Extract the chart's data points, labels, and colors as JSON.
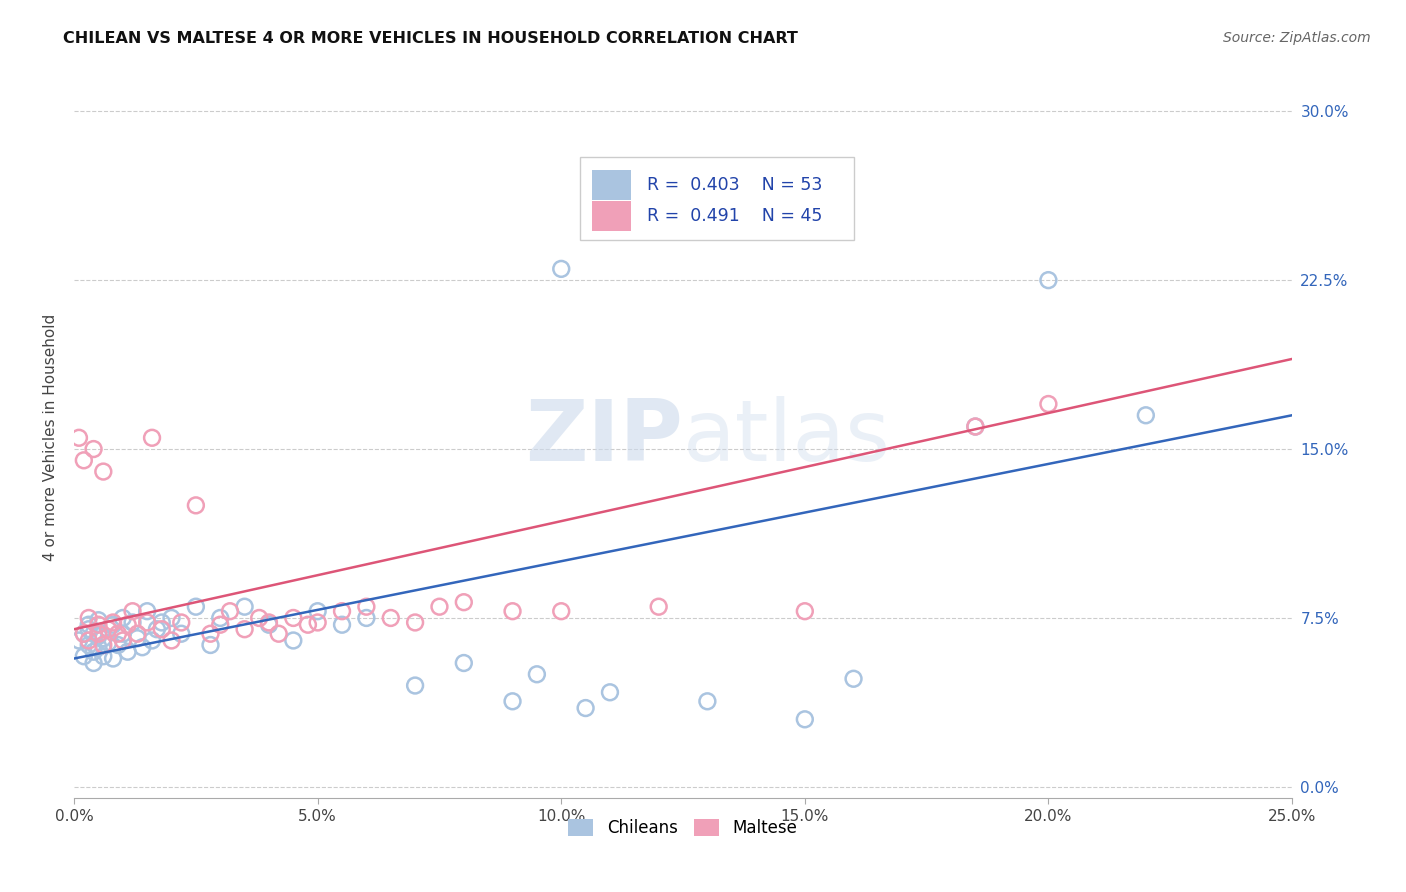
{
  "title": "CHILEAN VS MALTESE 4 OR MORE VEHICLES IN HOUSEHOLD CORRELATION CHART",
  "source": "Source: ZipAtlas.com",
  "ylabel": "4 or more Vehicles in Household",
  "xlim": [
    0.0,
    0.25
  ],
  "ylim": [
    -0.005,
    0.315
  ],
  "watermark_zip": "ZIP",
  "watermark_atlas": "atlas",
  "legend_blue_R": "0.403",
  "legend_blue_N": "53",
  "legend_pink_R": "0.491",
  "legend_pink_N": "45",
  "blue_scatter_color": "#aac4e0",
  "pink_scatter_color": "#f0a0b8",
  "blue_line_color": "#3366bb",
  "pink_line_color": "#dd5577",
  "chileans_x": [
    0.001,
    0.002,
    0.002,
    0.003,
    0.003,
    0.003,
    0.004,
    0.004,
    0.004,
    0.005,
    0.005,
    0.005,
    0.006,
    0.006,
    0.007,
    0.007,
    0.008,
    0.008,
    0.009,
    0.01,
    0.01,
    0.011,
    0.012,
    0.013,
    0.014,
    0.015,
    0.016,
    0.017,
    0.018,
    0.02,
    0.022,
    0.025,
    0.028,
    0.03,
    0.035,
    0.04,
    0.045,
    0.05,
    0.055,
    0.06,
    0.07,
    0.08,
    0.09,
    0.095,
    0.1,
    0.105,
    0.11,
    0.13,
    0.15,
    0.16,
    0.185,
    0.2,
    0.22
  ],
  "chileans_y": [
    0.065,
    0.068,
    0.058,
    0.072,
    0.063,
    0.07,
    0.055,
    0.068,
    0.06,
    0.067,
    0.062,
    0.074,
    0.066,
    0.058,
    0.07,
    0.064,
    0.072,
    0.057,
    0.063,
    0.068,
    0.075,
    0.06,
    0.073,
    0.066,
    0.062,
    0.078,
    0.065,
    0.07,
    0.073,
    0.075,
    0.068,
    0.08,
    0.063,
    0.075,
    0.08,
    0.072,
    0.065,
    0.078,
    0.072,
    0.075,
    0.045,
    0.055,
    0.038,
    0.05,
    0.23,
    0.035,
    0.042,
    0.038,
    0.03,
    0.048,
    0.16,
    0.225,
    0.165
  ],
  "maltese_x": [
    0.001,
    0.002,
    0.002,
    0.003,
    0.003,
    0.004,
    0.005,
    0.005,
    0.006,
    0.006,
    0.007,
    0.008,
    0.009,
    0.01,
    0.011,
    0.012,
    0.013,
    0.015,
    0.016,
    0.018,
    0.02,
    0.022,
    0.025,
    0.028,
    0.03,
    0.032,
    0.035,
    0.038,
    0.04,
    0.042,
    0.045,
    0.048,
    0.05,
    0.055,
    0.06,
    0.065,
    0.07,
    0.075,
    0.08,
    0.09,
    0.1,
    0.12,
    0.15,
    0.185,
    0.2
  ],
  "maltese_y": [
    0.155,
    0.068,
    0.145,
    0.075,
    0.065,
    0.15,
    0.068,
    0.072,
    0.063,
    0.14,
    0.07,
    0.073,
    0.068,
    0.065,
    0.072,
    0.078,
    0.068,
    0.073,
    0.155,
    0.07,
    0.065,
    0.073,
    0.125,
    0.068,
    0.072,
    0.078,
    0.07,
    0.075,
    0.073,
    0.068,
    0.075,
    0.072,
    0.073,
    0.078,
    0.08,
    0.075,
    0.073,
    0.08,
    0.082,
    0.078,
    0.078,
    0.08,
    0.078,
    0.16,
    0.17
  ],
  "blue_trendline_x0": 0.0,
  "blue_trendline_y0": 0.057,
  "blue_trendline_x1": 0.25,
  "blue_trendline_y1": 0.165,
  "pink_trendline_x0": 0.0,
  "pink_trendline_y0": 0.07,
  "pink_trendline_x1": 0.25,
  "pink_trendline_y1": 0.19
}
